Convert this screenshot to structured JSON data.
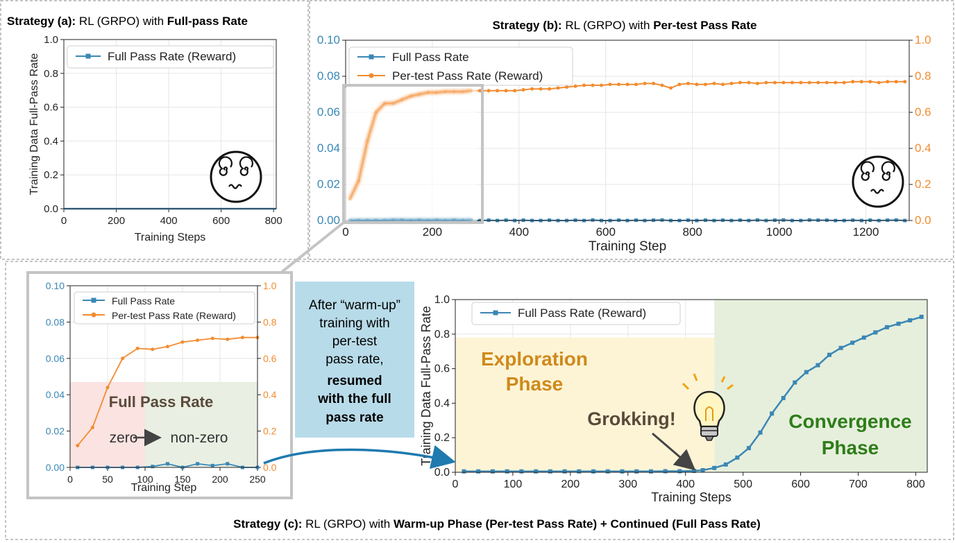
{
  "panels": {
    "a": {
      "title_prefix": "Strategy (a):",
      "title_middle": " RL (GRPO) with ",
      "title_bold": "Full-pass Rate"
    },
    "b": {
      "title_prefix": "Strategy (b):",
      "title_middle": " RL (GRPO) with ",
      "title_bold": "Per-test Pass Rate"
    },
    "c": {
      "title_prefix": "Strategy (c):",
      "title_middle": " RL (GRPO) with ",
      "title_bold": "Warm-up Phase (Per-test Pass Rate) + Continued (Full Pass Rate)"
    }
  },
  "middle_note": {
    "lines": [
      "After “warm-up”",
      "training with",
      "per-test",
      "pass rate,"
    ],
    "bold_lines": [
      "resumed",
      "with the full",
      "pass rate"
    ]
  },
  "colors": {
    "blue": "#3a87b5",
    "orange": "#f28c30",
    "note_bg": "#b8dbe9",
    "exploration_bg": "#fdf4d6",
    "convergence_bg": "#e6efdc",
    "zero_bg": "#fbe3e1",
    "nonzero_bg": "#e9efe2",
    "exploration_text": "#cf8a1c",
    "convergence_text": "#2e7d19",
    "annotation_text": "#5a4a3a",
    "arrow": "#1f7ab0"
  },
  "icons": [
    "dizzy-face-icon",
    "dizzy-face-icon",
    "lightbulb-icon"
  ],
  "chart_data": [
    {
      "id": "a",
      "type": "line",
      "xlabel": "Training Steps",
      "ylabel": "Training Data Full-Pass Rate",
      "xlim": [
        0,
        810
      ],
      "ylim": [
        0,
        1.0
      ],
      "xticks": [
        0,
        200,
        400,
        600,
        800
      ],
      "yticks": [
        0.0,
        0.2,
        0.4,
        0.6,
        0.8,
        1.0
      ],
      "grid": true,
      "legend": "top",
      "series": [
        {
          "name": "Full Pass Rate (Reward)",
          "marker": "square",
          "x": [
            0,
            810
          ],
          "y": [
            0,
            0
          ]
        }
      ]
    },
    {
      "id": "b",
      "type": "line",
      "xlabel": "Training Step",
      "xlim": [
        0,
        1300
      ],
      "ylim_left": [
        0,
        0.1
      ],
      "ylim_right": [
        0,
        1.0
      ],
      "xticks": [
        0,
        200,
        400,
        600,
        800,
        1000,
        1200
      ],
      "yticks_left": [
        0.0,
        0.02,
        0.04,
        0.06,
        0.08,
        0.1
      ],
      "yticks_right": [
        0.0,
        0.2,
        0.4,
        0.6,
        0.8,
        1.0
      ],
      "grid": true,
      "legend": "top-left",
      "series": [
        {
          "name": "Full Pass Rate",
          "axis": "left",
          "marker": "square",
          "x": [
            10,
            30,
            50,
            70,
            90,
            110,
            130,
            150,
            170,
            190,
            210,
            230,
            250,
            270,
            290,
            310,
            330,
            350,
            370,
            390,
            410,
            430,
            450,
            470,
            490,
            510,
            530,
            550,
            570,
            590,
            610,
            630,
            650,
            670,
            690,
            710,
            730,
            750,
            770,
            790,
            810,
            830,
            850,
            870,
            890,
            910,
            930,
            950,
            970,
            990,
            1010,
            1030,
            1050,
            1070,
            1090,
            1110,
            1130,
            1150,
            1170,
            1190,
            1210,
            1230,
            1250,
            1270,
            1290
          ],
          "y": [
            0,
            0,
            0,
            0,
            0,
            0.0002,
            0.0002,
            0,
            0.0002,
            0,
            0.0002,
            0,
            0.0002,
            0,
            0.0002,
            0,
            0.0002,
            0,
            0.0002,
            0,
            0.0002,
            0,
            0,
            0.0002,
            0,
            0,
            0.0002,
            0,
            0.0003,
            0,
            0,
            0.0002,
            0,
            0.0002,
            0,
            0.0002,
            0.0003,
            0,
            0,
            0.0002,
            0,
            0.0002,
            0,
            0.0002,
            0,
            0.0002,
            0,
            0.0003,
            0,
            0.0002,
            0.0003,
            0,
            0,
            0.0003,
            0.0002,
            0.0002,
            0,
            0,
            0.0002,
            0,
            0.0002,
            0,
            0.0002,
            0.0003,
            0
          ]
        },
        {
          "name": "Per-test Pass Rate (Reward)",
          "axis": "right",
          "marker": "circle",
          "x": [
            10,
            30,
            50,
            70,
            90,
            110,
            130,
            150,
            170,
            190,
            210,
            230,
            250,
            270,
            290,
            310,
            330,
            350,
            370,
            390,
            410,
            430,
            450,
            470,
            490,
            510,
            530,
            550,
            570,
            590,
            610,
            630,
            650,
            670,
            690,
            710,
            730,
            750,
            770,
            790,
            810,
            830,
            850,
            870,
            890,
            910,
            930,
            950,
            970,
            990,
            1010,
            1030,
            1050,
            1070,
            1090,
            1110,
            1130,
            1150,
            1170,
            1190,
            1210,
            1230,
            1250,
            1270,
            1290
          ],
          "y": [
            0.12,
            0.22,
            0.44,
            0.6,
            0.65,
            0.65,
            0.67,
            0.69,
            0.7,
            0.71,
            0.71,
            0.715,
            0.715,
            0.715,
            0.72,
            0.72,
            0.72,
            0.72,
            0.72,
            0.72,
            0.725,
            0.73,
            0.73,
            0.73,
            0.735,
            0.74,
            0.745,
            0.75,
            0.75,
            0.75,
            0.755,
            0.755,
            0.755,
            0.755,
            0.76,
            0.76,
            0.75,
            0.735,
            0.755,
            0.76,
            0.755,
            0.755,
            0.76,
            0.755,
            0.76,
            0.765,
            0.765,
            0.76,
            0.765,
            0.765,
            0.765,
            0.765,
            0.765,
            0.765,
            0.765,
            0.765,
            0.765,
            0.765,
            0.77,
            0.77,
            0.77,
            0.765,
            0.77,
            0.77,
            0.77
          ]
        }
      ]
    },
    {
      "id": "c-inset",
      "type": "line",
      "xlabel": "Training Step",
      "xlim": [
        0,
        250
      ],
      "ylim_left": [
        0,
        0.1
      ],
      "ylim_right": [
        0,
        1.0
      ],
      "xticks": [
        0,
        50,
        100,
        150,
        200,
        250
      ],
      "yticks_left": [
        0.0,
        0.02,
        0.04,
        0.06,
        0.08,
        0.1
      ],
      "yticks_right": [
        0.0,
        0.2,
        0.4,
        0.6,
        0.8,
        1.0
      ],
      "grid": true,
      "legend": "top-left",
      "series": [
        {
          "name": "Full Pass Rate",
          "axis": "left",
          "marker": "square",
          "x": [
            10,
            30,
            50,
            70,
            90,
            110,
            130,
            150,
            170,
            190,
            210,
            230,
            250
          ],
          "y": [
            0,
            0,
            0,
            0,
            0,
            0.0005,
            0.002,
            0,
            0.002,
            0.001,
            0.002,
            0,
            0
          ]
        },
        {
          "name": "Per-test Pass Rate (Reward)",
          "axis": "right",
          "marker": "circle",
          "x": [
            10,
            30,
            50,
            70,
            90,
            110,
            130,
            150,
            170,
            190,
            210,
            230,
            250
          ],
          "y": [
            0.12,
            0.22,
            0.44,
            0.6,
            0.655,
            0.65,
            0.665,
            0.69,
            0.7,
            0.71,
            0.705,
            0.715,
            0.715
          ]
        }
      ],
      "annotations": {
        "box_title": "Full Pass Rate",
        "from": "zero",
        "to": "non-zero"
      }
    },
    {
      "id": "c-main",
      "type": "line",
      "xlabel": "Training Steps",
      "ylabel": "Training Data Full-Pass Rate",
      "xlim": [
        0,
        820
      ],
      "ylim": [
        0,
        1.0
      ],
      "xticks": [
        0,
        100,
        200,
        300,
        400,
        500,
        600,
        700,
        800
      ],
      "yticks": [
        0.0,
        0.2,
        0.4,
        0.6,
        0.8,
        1.0
      ],
      "grid": true,
      "legend": "top-left",
      "series": [
        {
          "name": "Full Pass Rate (Reward)",
          "marker": "square",
          "x": [
            15,
            40,
            65,
            90,
            115,
            140,
            165,
            190,
            215,
            240,
            265,
            290,
            315,
            340,
            365,
            390,
            415,
            430,
            450,
            470,
            490,
            510,
            530,
            550,
            570,
            590,
            610,
            630,
            650,
            670,
            690,
            710,
            730,
            750,
            770,
            790,
            810
          ],
          "y": [
            0.005,
            0.005,
            0.005,
            0.005,
            0.005,
            0.005,
            0.005,
            0.005,
            0.005,
            0.005,
            0.005,
            0.005,
            0.005,
            0.005,
            0.006,
            0.006,
            0.008,
            0.012,
            0.025,
            0.045,
            0.085,
            0.14,
            0.23,
            0.34,
            0.43,
            0.52,
            0.58,
            0.62,
            0.68,
            0.72,
            0.75,
            0.78,
            0.81,
            0.84,
            0.86,
            0.88,
            0.9
          ]
        }
      ],
      "annotations": {
        "phase1_line1": "Exploration",
        "phase1_line2": "Phase",
        "phase2_line1": "Convergence",
        "phase2_line2": "Phase",
        "event": "Grokking!"
      }
    }
  ]
}
